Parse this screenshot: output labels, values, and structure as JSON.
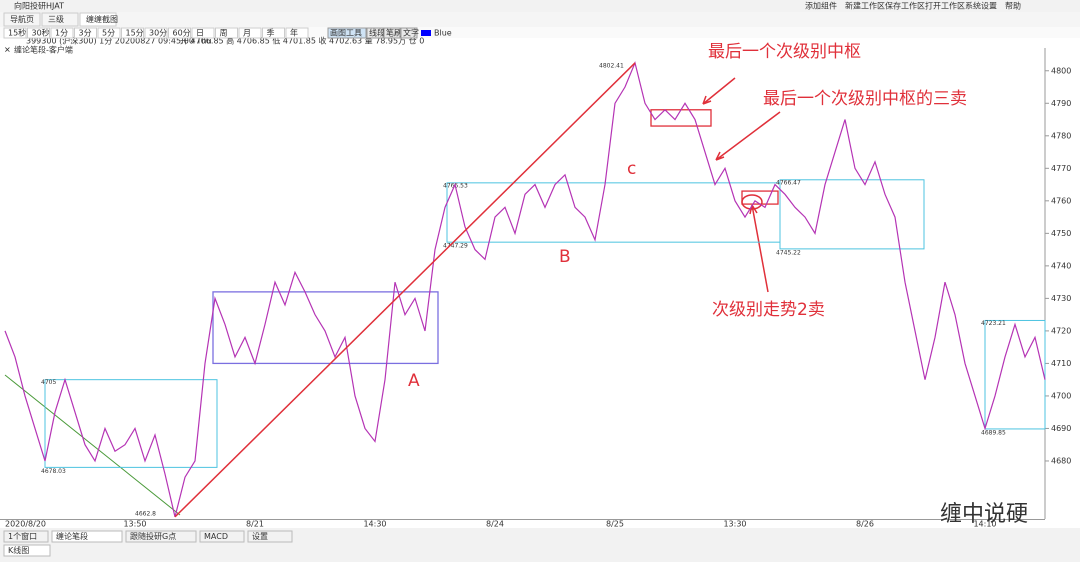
{
  "window": {
    "title": "向阳投研HJAT",
    "menu": [
      "添加组件",
      "新建工作区",
      "保存工作区",
      "打开工作区",
      "系统设置",
      "帮助"
    ]
  },
  "tabs": [
    "导航页",
    "三级",
    "缠缠截图"
  ],
  "toolbar": {
    "periods": [
      "15秒",
      "30秒",
      "1分",
      "3分",
      "5分",
      "15分",
      "30分",
      "60分",
      "日",
      "周",
      "月",
      "季",
      "年"
    ],
    "tools": [
      "画图工具",
      "线段",
      "笔刷",
      "文字"
    ],
    "color": "Blue"
  },
  "info": {
    "symbol": "399300 (沪深300) 1分 20200827 09:45:00 Thu",
    "quote": "开 4706.85 高 4706.85 低 4701.85 收 4702.63 量 78.95万 仓 0",
    "indicator": "缠论笔段-客户端"
  },
  "chart_data": {
    "type": "line",
    "x": [
      "2020/8/20",
      null,
      null,
      null,
      null,
      null,
      null,
      null,
      null,
      null,
      null,
      null,
      null,
      "13:50",
      null,
      null,
      null,
      null,
      null,
      null,
      null,
      null,
      null,
      null,
      null,
      "8/21",
      null,
      null,
      null,
      null,
      null,
      null,
      null,
      null,
      null,
      null,
      null,
      "14:30",
      null,
      null,
      null,
      null,
      null,
      null,
      null,
      null,
      null,
      null,
      null,
      "8/24",
      null,
      null,
      null,
      null,
      null,
      null,
      null,
      null,
      null,
      null,
      null,
      "8/25",
      null,
      null,
      null,
      null,
      null,
      null,
      null,
      null,
      null,
      null,
      null,
      "13:30",
      null,
      null,
      null,
      null,
      null,
      null,
      null,
      null,
      null,
      null,
      null,
      null,
      "8/26",
      null,
      null,
      null,
      null,
      null,
      null,
      null,
      null,
      null,
      null,
      null,
      "14:10",
      null,
      null,
      null,
      null,
      null,
      null
    ],
    "series": [
      {
        "color": "#b534b5",
        "values": [
          4720,
          4712,
          4700,
          4690,
          4680,
          4695,
          4705,
          4695,
          4685,
          4680,
          4690,
          4683,
          4685,
          4690,
          4680,
          4688,
          4676,
          4662.8,
          4675,
          4680,
          4710,
          4730,
          4722,
          4712,
          4718,
          4710,
          4722,
          4735,
          4728,
          4738,
          4732,
          4725,
          4720,
          4712,
          4718,
          4700,
          4690,
          4686,
          4705,
          4735,
          4725,
          4730,
          4720,
          4745,
          4758,
          4765,
          4752,
          4745,
          4742,
          4755,
          4758,
          4750,
          4762,
          4765,
          4758,
          4765,
          4768,
          4758,
          4755,
          4748,
          4765,
          4790,
          4795,
          4802.41,
          4790,
          4785,
          4788,
          4785,
          4790,
          4785,
          4775,
          4765,
          4770,
          4760,
          4755,
          4760,
          4758,
          4765,
          4762,
          4758,
          4755,
          4750,
          4765,
          4775,
          4785,
          4770,
          4765,
          4772,
          4762,
          4755,
          4735,
          4720,
          4705,
          4718,
          4735,
          4725,
          4710,
          4700,
          4690,
          4700,
          4712,
          4722,
          4712,
          4718,
          4705
        ]
      }
    ],
    "zhongshu": [
      {
        "high": 4705,
        "low": 4678.03
      },
      {
        "high": 4765.53,
        "low": 4747.29
      },
      {
        "high": 4766.47,
        "low": 4745.22
      },
      {
        "high": 4723.21,
        "low": 4689.85
      }
    ],
    "boxes": [
      {
        "high": 4732,
        "low": 4710,
        "color": "#7b6fe0"
      },
      {
        "high": 4788,
        "low": 4783,
        "color": "#e0303a"
      },
      {
        "high": 4763,
        "low": 4759,
        "color": "#e0303a"
      }
    ],
    "trend_color": "#e0303a",
    "ylim": [
      4662,
      4807
    ],
    "yticks": [
      4680,
      4690,
      4700,
      4710,
      4720,
      4730,
      4740,
      4750,
      4760,
      4770,
      4780,
      4790,
      4800
    ],
    "annotations": [
      "最后一个次级别中枢",
      "最后一个次级别中枢的三卖",
      "次级别走势2卖",
      "A",
      "B",
      "c"
    ],
    "watermark": "缠中说硬"
  },
  "statusbar": {
    "items": [
      "1个窗口",
      "缠论笔段",
      "跟随投研G点",
      "MACD",
      "设置"
    ],
    "tab": "K线图"
  }
}
